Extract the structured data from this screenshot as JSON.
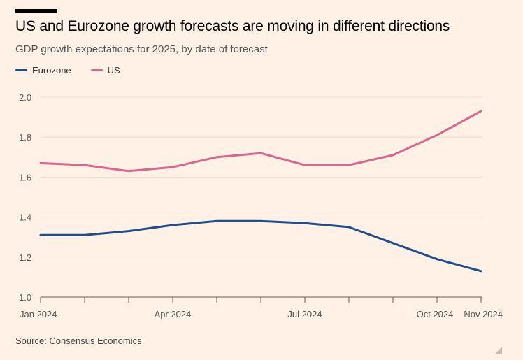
{
  "title": "US and Eurozone growth forecasts are moving in different directions",
  "subtitle": "GDP growth expectations for 2025, by date of forecast",
  "source": "Source: Consensus Economics",
  "chart_data": {
    "type": "line",
    "title": "US and Eurozone growth forecasts are moving in different directions",
    "subtitle": "GDP growth expectations for 2025, by date of forecast",
    "x": [
      "Jan 2024",
      "Feb 2024",
      "Mar 2024",
      "Apr 2024",
      "May 2024",
      "Jun 2024",
      "Jul 2024",
      "Aug 2024",
      "Sep 2024",
      "Oct 2024",
      "Nov 2024"
    ],
    "x_tick_labels": [
      "Jan 2024",
      "Apr 2024",
      "Jul 2024",
      "Oct 2024",
      "Nov 2024"
    ],
    "y_ticks": [
      1.0,
      1.2,
      1.4,
      1.6,
      1.8,
      2.0
    ],
    "ylim": [
      1.0,
      2.0
    ],
    "grid": true,
    "legend_position": "top-left",
    "series": [
      {
        "name": "Eurozone",
        "color": "#1f4e8c",
        "values": [
          1.31,
          1.31,
          1.33,
          1.36,
          1.38,
          1.38,
          1.37,
          1.35,
          1.27,
          1.19,
          1.13
        ]
      },
      {
        "name": "US",
        "color": "#d9678d",
        "values": [
          1.67,
          1.66,
          1.63,
          1.65,
          1.7,
          1.72,
          1.66,
          1.66,
          1.71,
          1.81,
          1.93
        ]
      }
    ]
  }
}
